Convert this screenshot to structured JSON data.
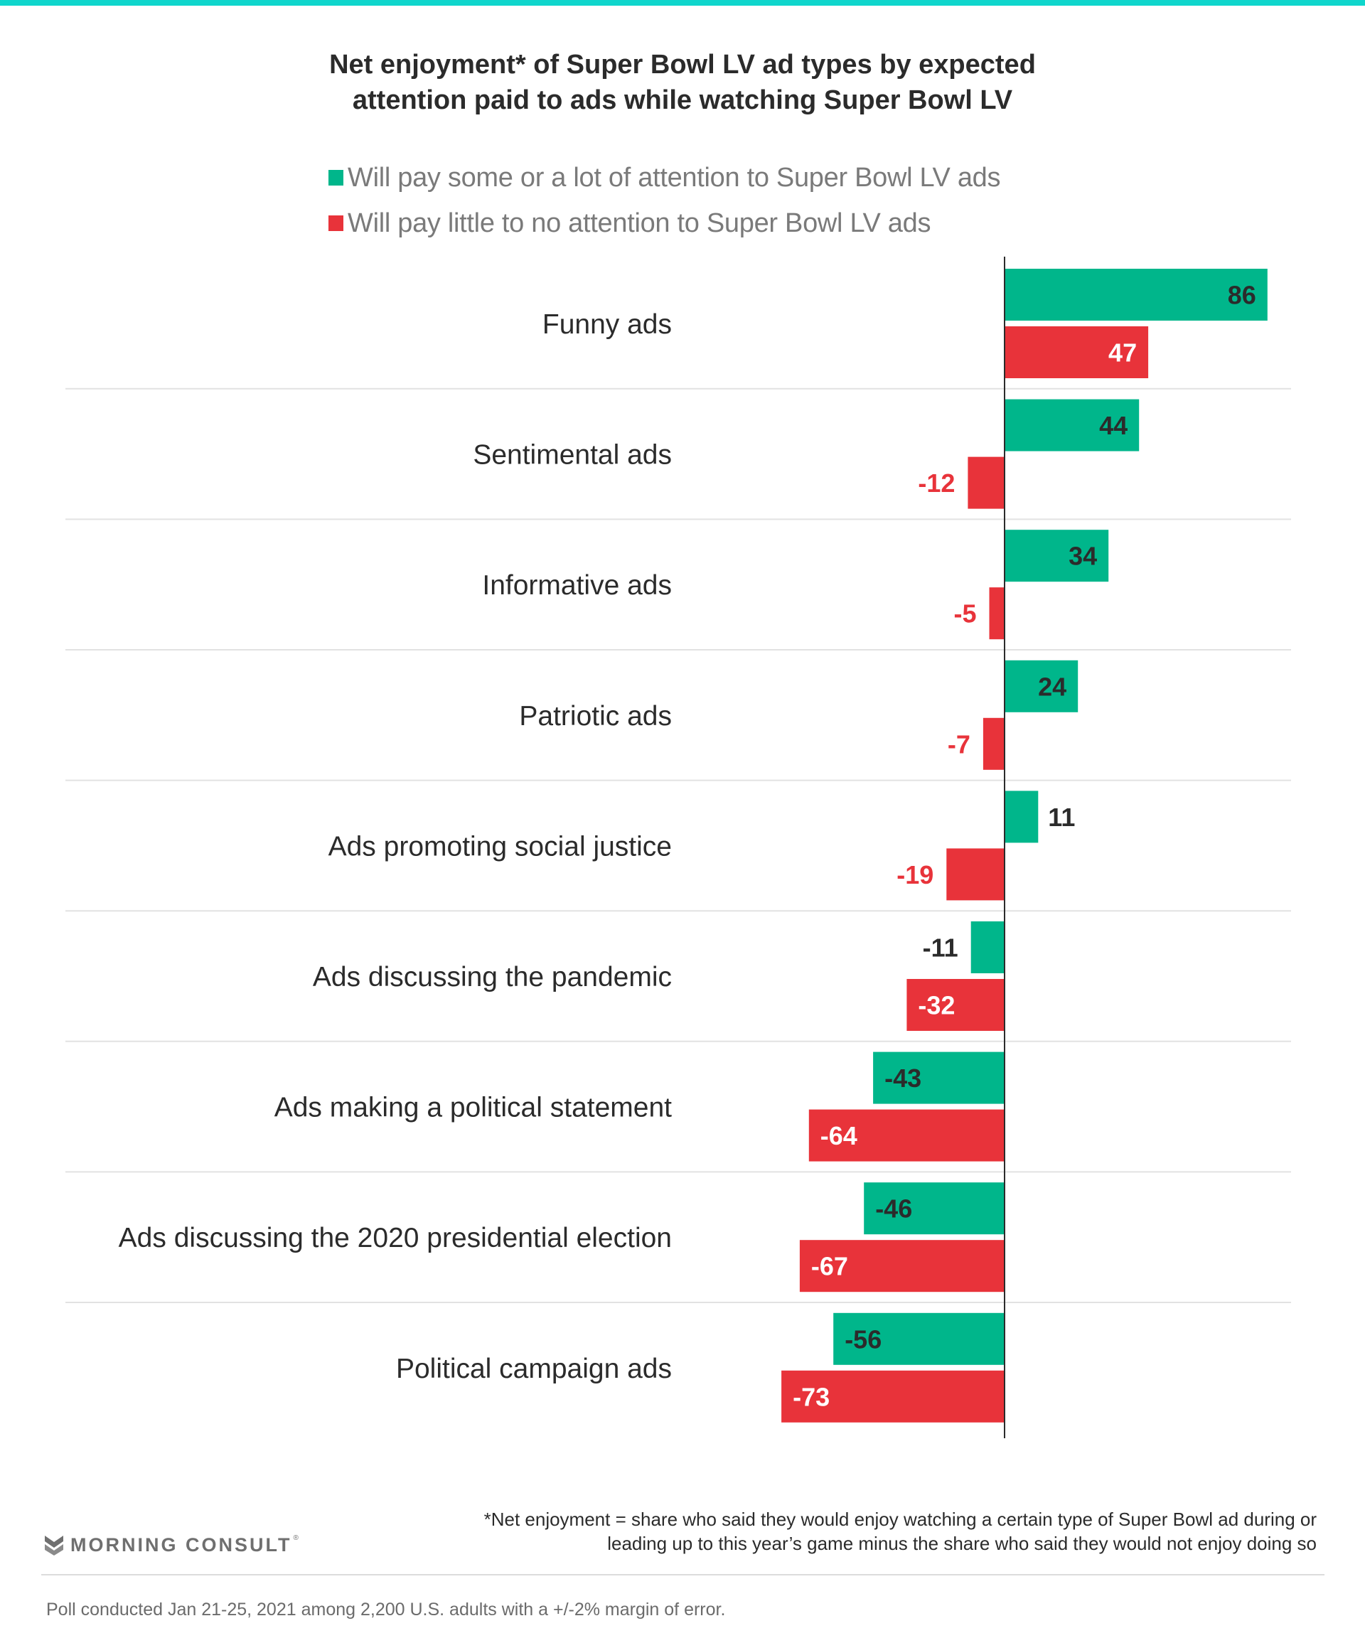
{
  "colors": {
    "accent_bar": "#0fd6cc",
    "series_attention": "#00b68b",
    "series_little": "#e8333a",
    "text_dark": "#2b2b2b",
    "text_white": "#ffffff",
    "gridline": "#e2e2e2",
    "axis": "#2b2b2b"
  },
  "chart_data": {
    "type": "bar",
    "orientation": "horizontal",
    "title": "Net enjoyment* of Super Bowl LV ad types by expected attention paid to ads while watching Super Bowl LV",
    "title_lines": [
      "Net enjoyment* of Super Bowl LV ad types by expected",
      "attention paid to ads while watching Super Bowl LV"
    ],
    "xlabel": "",
    "ylabel": "",
    "xlim": [
      -73,
      86
    ],
    "grid": false,
    "legend_position": "top-left",
    "categories": [
      "Funny ads",
      "Sentimental ads",
      "Informative ads",
      "Patriotic ads",
      "Ads promoting social justice",
      "Ads discussing the pandemic",
      "Ads making a political statement",
      "Ads discussing the 2020 presidential election",
      "Political campaign ads"
    ],
    "series": [
      {
        "name": "Will pay some or a lot of attention to Super Bowl LV ads",
        "color": "#00b68b",
        "values": [
          86,
          44,
          34,
          24,
          11,
          -11,
          -43,
          -46,
          -56
        ]
      },
      {
        "name": "Will pay little to no attention to Super Bowl LV ads",
        "color": "#e8333a",
        "values": [
          47,
          -12,
          -5,
          -7,
          -19,
          -32,
          -64,
          -67,
          -73
        ]
      }
    ]
  },
  "footnote": {
    "lines": [
      "*Net enjoyment = share who said they would enjoy watching a certain type of Super Bowl ad during or",
      "leading up to this year’s game minus the share who said they would not enjoy doing so"
    ]
  },
  "brand": {
    "name": "MORNING CONSULT",
    "registered": "®",
    "icon": "morning-consult-logo-icon"
  },
  "poll_note": "Poll conducted Jan 21-25, 2021 among 2,200 U.S. adults with a +/-2% margin of error."
}
